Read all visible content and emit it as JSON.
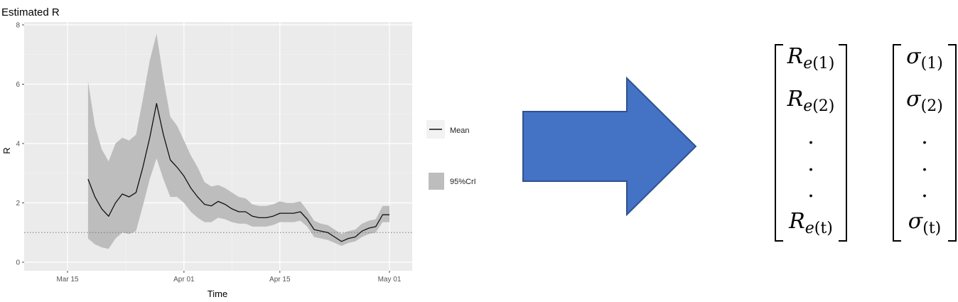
{
  "chart_data": {
    "type": "line",
    "title": "Estimated R",
    "xlabel": "Time",
    "ylabel": "R",
    "ylim": [
      0,
      8
    ],
    "yticks": [
      "0",
      "2",
      "4",
      "6",
      "8"
    ],
    "xticks": [
      "Mar 15",
      "Apr 01",
      "Apr 15",
      "May 01"
    ],
    "x_tick_dates": [
      "2020-03-15",
      "2020-04-01",
      "2020-04-15",
      "2020-05-01"
    ],
    "grid": true,
    "legend_position": "right",
    "threshold_line": 1,
    "series": [
      {
        "name": "Mean",
        "x": [
          "2020-03-18",
          "2020-03-19",
          "2020-03-20",
          "2020-03-21",
          "2020-03-22",
          "2020-03-23",
          "2020-03-24",
          "2020-03-25",
          "2020-03-26",
          "2020-03-27",
          "2020-03-28",
          "2020-03-29",
          "2020-03-30",
          "2020-03-31",
          "2020-04-01",
          "2020-04-02",
          "2020-04-03",
          "2020-04-04",
          "2020-04-05",
          "2020-04-06",
          "2020-04-07",
          "2020-04-08",
          "2020-04-09",
          "2020-04-10",
          "2020-04-11",
          "2020-04-12",
          "2020-04-13",
          "2020-04-14",
          "2020-04-15",
          "2020-04-16",
          "2020-04-17",
          "2020-04-18",
          "2020-04-19",
          "2020-04-20",
          "2020-04-21",
          "2020-04-22",
          "2020-04-23",
          "2020-04-24",
          "2020-04-25",
          "2020-04-26",
          "2020-04-27",
          "2020-04-28",
          "2020-04-29",
          "2020-04-30",
          "2020-05-01"
        ],
        "values": [
          2.8,
          2.2,
          1.8,
          1.55,
          2.0,
          2.3,
          2.2,
          2.35,
          3.2,
          4.2,
          5.35,
          4.3,
          3.45,
          3.2,
          2.9,
          2.5,
          2.2,
          1.95,
          1.9,
          2.05,
          1.95,
          1.8,
          1.7,
          1.7,
          1.55,
          1.5,
          1.5,
          1.55,
          1.65,
          1.65,
          1.65,
          1.7,
          1.45,
          1.1,
          1.05,
          1.0,
          0.85,
          0.7,
          0.8,
          0.85,
          1.05,
          1.15,
          1.2,
          1.6,
          1.6
        ]
      },
      {
        "name": "95%CrI",
        "x": [
          "2020-03-18",
          "2020-03-19",
          "2020-03-20",
          "2020-03-21",
          "2020-03-22",
          "2020-03-23",
          "2020-03-24",
          "2020-03-25",
          "2020-03-26",
          "2020-03-27",
          "2020-03-28",
          "2020-03-29",
          "2020-03-30",
          "2020-03-31",
          "2020-04-01",
          "2020-04-02",
          "2020-04-03",
          "2020-04-04",
          "2020-04-05",
          "2020-04-06",
          "2020-04-07",
          "2020-04-08",
          "2020-04-09",
          "2020-04-10",
          "2020-04-11",
          "2020-04-12",
          "2020-04-13",
          "2020-04-14",
          "2020-04-15",
          "2020-04-16",
          "2020-04-17",
          "2020-04-18",
          "2020-04-19",
          "2020-04-20",
          "2020-04-21",
          "2020-04-22",
          "2020-04-23",
          "2020-04-24",
          "2020-04-25",
          "2020-04-26",
          "2020-04-27",
          "2020-04-28",
          "2020-04-29",
          "2020-04-30",
          "2020-05-01"
        ],
        "lower": [
          0.8,
          0.6,
          0.5,
          0.45,
          0.8,
          1.0,
          0.95,
          1.05,
          1.9,
          2.8,
          3.5,
          2.8,
          2.2,
          2.2,
          2.0,
          1.7,
          1.5,
          1.35,
          1.35,
          1.5,
          1.45,
          1.35,
          1.3,
          1.3,
          1.2,
          1.2,
          1.2,
          1.25,
          1.35,
          1.35,
          1.35,
          1.4,
          1.2,
          0.85,
          0.8,
          0.75,
          0.65,
          0.55,
          0.65,
          0.7,
          0.85,
          0.95,
          1.0,
          1.35,
          1.35
        ],
        "upper": [
          6.1,
          4.6,
          3.8,
          3.4,
          4.0,
          4.2,
          4.1,
          4.3,
          5.5,
          6.8,
          7.7,
          6.2,
          4.9,
          4.6,
          4.1,
          3.6,
          3.2,
          2.7,
          2.55,
          2.6,
          2.5,
          2.35,
          2.2,
          2.15,
          1.95,
          1.9,
          1.9,
          1.95,
          2.05,
          2.0,
          2.0,
          2.05,
          1.75,
          1.4,
          1.3,
          1.25,
          1.1,
          0.95,
          1.05,
          1.1,
          1.3,
          1.4,
          1.45,
          1.9,
          1.9
        ]
      }
    ]
  },
  "legend": {
    "mean_label": "Mean",
    "cri_label": "95%CrI"
  },
  "colors": {
    "panel_bg": "#ebebeb",
    "ribbon": "#bdbdbd",
    "line": "#111111",
    "arrow_fill": "#4472c4",
    "arrow_stroke": "#2f528f"
  },
  "arrow": {
    "icon": "right-arrow-icon"
  },
  "matrix_r": {
    "base": "R",
    "sub_base": "e",
    "entries": [
      "(1)",
      "(2)",
      "(t)"
    ],
    "dots": [
      ".",
      ".",
      "."
    ]
  },
  "matrix_sigma": {
    "base": "σ",
    "entries": [
      "(1)",
      "(2)",
      "(t)"
    ],
    "dots": [
      ".",
      ".",
      "."
    ]
  }
}
